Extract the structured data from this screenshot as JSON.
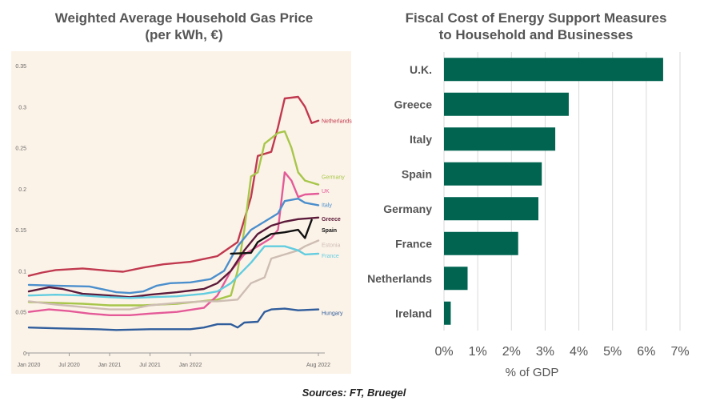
{
  "chart_data": [
    {
      "type": "line",
      "title": "Weighted Average Household Gas Price",
      "subtitle": "(per kWh, €)",
      "x_ticks": [
        "Jan 2020",
        "Jul 2020",
        "Jan 2021",
        "Jul 2021",
        "Jan 2022",
        "Aug 2022"
      ],
      "y_ticks": [
        "0",
        "0.05",
        "0.1",
        "0.15",
        "0.2",
        "0.25",
        "0.3",
        "0.35"
      ],
      "ylim": [
        0,
        0.35
      ],
      "background": "#fcf3e8",
      "series": [
        {
          "name": "Netherlands",
          "color": "#c0394f",
          "points": [
            [
              0,
              0.094
            ],
            [
              2,
              0.098
            ],
            [
              4,
              0.101
            ],
            [
              8,
              0.103
            ],
            [
              12,
              0.1
            ],
            [
              14,
              0.099
            ],
            [
              17,
              0.104
            ],
            [
              20,
              0.108
            ],
            [
              24,
              0.111
            ],
            [
              28,
              0.118
            ],
            [
              31,
              0.135
            ],
            [
              33,
              0.19
            ],
            [
              34,
              0.24
            ],
            [
              36,
              0.245
            ],
            [
              37,
              0.275
            ],
            [
              38,
              0.31
            ],
            [
              40,
              0.312
            ],
            [
              41,
              0.3
            ],
            [
              42,
              0.28
            ],
            [
              43,
              0.283
            ]
          ]
        },
        {
          "name": "Germany",
          "color": "#a7c64a",
          "points": [
            [
              0,
              0.062
            ],
            [
              4,
              0.061
            ],
            [
              8,
              0.06
            ],
            [
              12,
              0.058
            ],
            [
              17,
              0.058
            ],
            [
              22,
              0.06
            ],
            [
              28,
              0.065
            ],
            [
              30,
              0.07
            ],
            [
              31,
              0.1
            ],
            [
              32,
              0.15
            ],
            [
              33,
              0.215
            ],
            [
              34,
              0.22
            ],
            [
              35,
              0.255
            ],
            [
              37,
              0.268
            ],
            [
              38,
              0.27
            ],
            [
              39,
              0.25
            ],
            [
              40,
              0.22
            ],
            [
              41,
              0.21
            ],
            [
              43,
              0.205
            ]
          ]
        },
        {
          "name": "UK",
          "color": "#e45a98",
          "points": [
            [
              0,
              0.05
            ],
            [
              3,
              0.053
            ],
            [
              6,
              0.051
            ],
            [
              9,
              0.048
            ],
            [
              12,
              0.046
            ],
            [
              15,
              0.046
            ],
            [
              18,
              0.048
            ],
            [
              22,
              0.05
            ],
            [
              26,
              0.055
            ],
            [
              28,
              0.07
            ],
            [
              30,
              0.1
            ],
            [
              32,
              0.12
            ],
            [
              34,
              0.13
            ],
            [
              36,
              0.14
            ],
            [
              37,
              0.15
            ],
            [
              38,
              0.22
            ],
            [
              39,
              0.21
            ],
            [
              40,
              0.19
            ],
            [
              41,
              0.193
            ],
            [
              43,
              0.194
            ]
          ]
        },
        {
          "name": "Italy",
          "color": "#4b8fcd",
          "points": [
            [
              0,
              0.083
            ],
            [
              4,
              0.082
            ],
            [
              9,
              0.081
            ],
            [
              13,
              0.074
            ],
            [
              15,
              0.073
            ],
            [
              17,
              0.075
            ],
            [
              19,
              0.082
            ],
            [
              21,
              0.085
            ],
            [
              24,
              0.086
            ],
            [
              27,
              0.09
            ],
            [
              29,
              0.1
            ],
            [
              31,
              0.13
            ],
            [
              33,
              0.15
            ],
            [
              35,
              0.16
            ],
            [
              37,
              0.17
            ],
            [
              38,
              0.185
            ],
            [
              40,
              0.188
            ],
            [
              41,
              0.183
            ],
            [
              43,
              0.18
            ]
          ]
        },
        {
          "name": "Greece",
          "color": "#5c1a3a",
          "points": [
            [
              0,
              0.075
            ],
            [
              3,
              0.08
            ],
            [
              5,
              0.078
            ],
            [
              8,
              0.072
            ],
            [
              12,
              0.07
            ],
            [
              15,
              0.068
            ],
            [
              18,
              0.071
            ],
            [
              22,
              0.074
            ],
            [
              26,
              0.078
            ],
            [
              28,
              0.085
            ],
            [
              30,
              0.1
            ],
            [
              32,
              0.125
            ],
            [
              34,
              0.145
            ],
            [
              36,
              0.155
            ],
            [
              38,
              0.16
            ],
            [
              40,
              0.163
            ],
            [
              43,
              0.165
            ]
          ]
        },
        {
          "name": "Spain",
          "color": "#111111",
          "points": [
            [
              30,
              0.121
            ],
            [
              33,
              0.122
            ],
            [
              34,
              0.135
            ],
            [
              36,
              0.145
            ],
            [
              38,
              0.147
            ],
            [
              40,
              0.15
            ],
            [
              41,
              0.14
            ],
            [
              42,
              0.162
            ]
          ]
        },
        {
          "name": "Estonia",
          "color": "#cdbdb3",
          "points": [
            [
              0,
              0.063
            ],
            [
              4,
              0.059
            ],
            [
              8,
              0.056
            ],
            [
              12,
              0.053
            ],
            [
              15,
              0.053
            ],
            [
              18,
              0.058
            ],
            [
              22,
              0.061
            ],
            [
              26,
              0.063
            ],
            [
              28,
              0.063
            ],
            [
              31,
              0.065
            ],
            [
              33,
              0.085
            ],
            [
              35,
              0.092
            ],
            [
              36,
              0.115
            ],
            [
              38,
              0.12
            ],
            [
              40,
              0.125
            ],
            [
              41,
              0.13
            ],
            [
              43,
              0.137
            ]
          ]
        },
        {
          "name": "France",
          "color": "#62cde0",
          "points": [
            [
              0,
              0.07
            ],
            [
              4,
              0.071
            ],
            [
              8,
              0.07
            ],
            [
              12,
              0.068
            ],
            [
              15,
              0.067
            ],
            [
              18,
              0.068
            ],
            [
              22,
              0.069
            ],
            [
              26,
              0.072
            ],
            [
              28,
              0.075
            ],
            [
              30,
              0.085
            ],
            [
              33,
              0.11
            ],
            [
              35,
              0.13
            ],
            [
              38,
              0.13
            ],
            [
              40,
              0.125
            ],
            [
              41,
              0.12
            ],
            [
              43,
              0.121
            ]
          ]
        },
        {
          "name": "Hungary",
          "color": "#2f5d9c",
          "points": [
            [
              0,
              0.031
            ],
            [
              4,
              0.03
            ],
            [
              10,
              0.029
            ],
            [
              13,
              0.028
            ],
            [
              18,
              0.029
            ],
            [
              24,
              0.029
            ],
            [
              26,
              0.031
            ],
            [
              28,
              0.035
            ],
            [
              30,
              0.035
            ],
            [
              31,
              0.031
            ],
            [
              32,
              0.037
            ],
            [
              34,
              0.038
            ],
            [
              35,
              0.05
            ],
            [
              36,
              0.053
            ],
            [
              38,
              0.054
            ],
            [
              40,
              0.052
            ],
            [
              43,
              0.053
            ]
          ]
        }
      ]
    },
    {
      "type": "bar",
      "orientation": "horizontal",
      "title": "Fiscal Cost of Energy Support Measures",
      "subtitle": "to Household and Businesses",
      "categories": [
        "U.K.",
        "Greece",
        "Italy",
        "Spain",
        "Germany",
        "France",
        "Netherlands",
        "Ireland"
      ],
      "values": [
        6.5,
        3.7,
        3.3,
        2.9,
        2.8,
        2.2,
        0.7,
        0.2
      ],
      "x_ticks": [
        "0%",
        "1%",
        "2%",
        "3%",
        "4%",
        "5%",
        "6%",
        "7%"
      ],
      "xlim": [
        0,
        7
      ],
      "xlabel": "% of GDP",
      "bar_color": "#006450",
      "grid": true
    }
  ],
  "source": "Sources: FT, Bruegel"
}
